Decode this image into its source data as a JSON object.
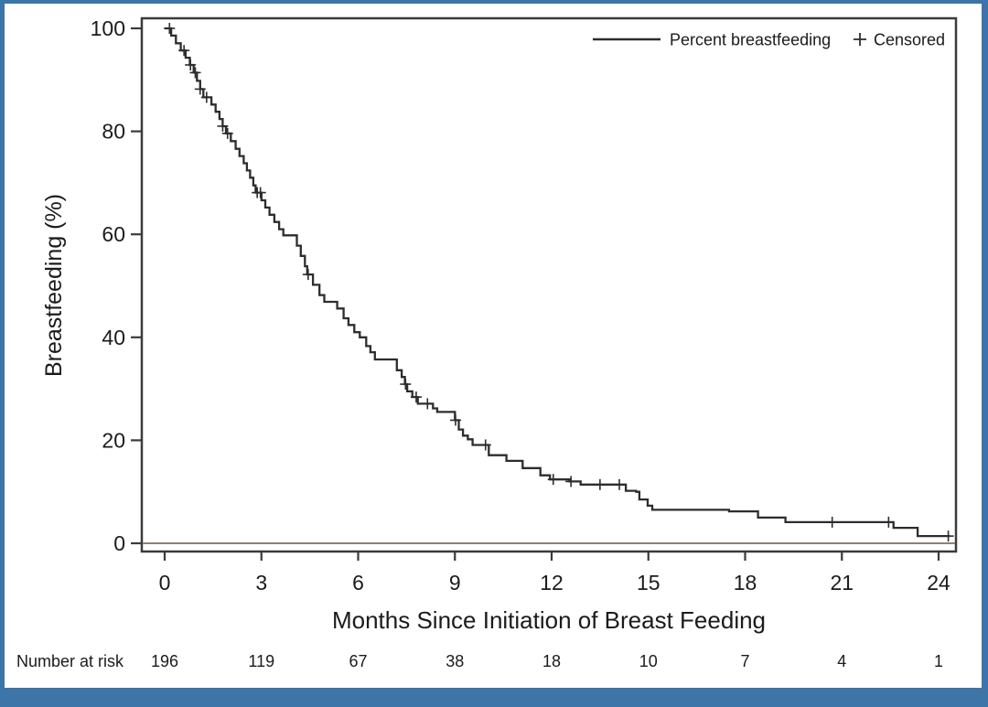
{
  "figure": {
    "colors": {
      "accent_blue": "#3d75a8",
      "curve": "#2d2d2d",
      "frame": "#3b3b3b",
      "text": "#1b1b1b",
      "baseline_line": "#8f8074"
    }
  },
  "chart_data": {
    "type": "line",
    "chart_kind": "kaplan_meier_step",
    "title": "",
    "xlabel": "Months Since Initiation of Breast Feeding",
    "ylabel": "Breastfeeding (%)",
    "xlim": [
      0,
      24.6
    ],
    "ylim": [
      0,
      100
    ],
    "x_ticks": [
      0,
      3,
      6,
      9,
      12,
      15,
      18,
      21,
      24
    ],
    "y_ticks": [
      0,
      20,
      40,
      60,
      80,
      100
    ],
    "grid": false,
    "legend_position": "top-right",
    "legend": [
      {
        "label": "Percent breastfeeding",
        "marker": "line"
      },
      {
        "label": "Censored",
        "marker": "plus"
      }
    ],
    "baseline_reference_y": 0,
    "series": [
      {
        "name": "Percent breastfeeding",
        "step_points": [
          [
            0,
            100
          ],
          [
            0.2,
            98.6
          ],
          [
            0.35,
            97.1
          ],
          [
            0.5,
            95.7
          ],
          [
            0.65,
            94.3
          ],
          [
            0.78,
            92.9
          ],
          [
            0.9,
            91.4
          ],
          [
            1.0,
            89.8
          ],
          [
            1.1,
            88.2
          ],
          [
            1.2,
            86.6
          ],
          [
            1.45,
            85.2
          ],
          [
            1.58,
            83.8
          ],
          [
            1.7,
            82.4
          ],
          [
            1.8,
            81.0
          ],
          [
            1.9,
            79.6
          ],
          [
            2.05,
            78.1
          ],
          [
            2.2,
            76.6
          ],
          [
            2.32,
            75.2
          ],
          [
            2.45,
            73.8
          ],
          [
            2.55,
            72.4
          ],
          [
            2.65,
            71.0
          ],
          [
            2.75,
            69.5
          ],
          [
            2.82,
            68.1
          ],
          [
            3.0,
            66.6
          ],
          [
            3.12,
            65.2
          ],
          [
            3.25,
            63.8
          ],
          [
            3.4,
            62.4
          ],
          [
            3.55,
            61.0
          ],
          [
            3.68,
            59.8
          ],
          [
            4.1,
            57.8
          ],
          [
            4.22,
            55.8
          ],
          [
            4.35,
            53.8
          ],
          [
            4.42,
            52.2
          ],
          [
            4.6,
            50.2
          ],
          [
            4.8,
            48.2
          ],
          [
            4.95,
            46.9
          ],
          [
            5.35,
            45.6
          ],
          [
            5.55,
            43.7
          ],
          [
            5.7,
            42.4
          ],
          [
            5.88,
            41.0
          ],
          [
            6.05,
            40.0
          ],
          [
            6.25,
            38.3
          ],
          [
            6.38,
            37.1
          ],
          [
            6.52,
            35.7
          ],
          [
            7.2,
            33.6
          ],
          [
            7.35,
            32.3
          ],
          [
            7.45,
            30.9
          ],
          [
            7.52,
            29.5
          ],
          [
            7.68,
            28.4
          ],
          [
            7.85,
            27.1
          ],
          [
            8.32,
            26.2
          ],
          [
            8.45,
            25.5
          ],
          [
            9.0,
            23.9
          ],
          [
            9.12,
            22.1
          ],
          [
            9.25,
            20.9
          ],
          [
            9.4,
            20.2
          ],
          [
            9.55,
            19.1
          ],
          [
            10.05,
            17.1
          ],
          [
            10.6,
            16.0
          ],
          [
            11.1,
            14.6
          ],
          [
            11.65,
            13.2
          ],
          [
            11.95,
            12.4
          ],
          [
            12.55,
            12.0
          ],
          [
            12.9,
            11.4
          ],
          [
            14.3,
            10.2
          ],
          [
            14.62,
            10.0
          ],
          [
            14.72,
            8.5
          ],
          [
            14.98,
            7.3
          ],
          [
            15.12,
            6.5
          ],
          [
            17.5,
            6.2
          ],
          [
            18.4,
            5.0
          ],
          [
            19.25,
            4.1
          ],
          [
            22.6,
            3.0
          ],
          [
            23.35,
            1.4
          ]
        ],
        "end_month": 24.35
      }
    ],
    "censored": {
      "marker": "+",
      "months": [
        0.15,
        0.6,
        0.8,
        0.95,
        1.1,
        1.3,
        1.8,
        1.95,
        2.87,
        2.97,
        4.45,
        7.47,
        7.8,
        8.15,
        9.02,
        9.95,
        12.05,
        12.6,
        13.5,
        14.1,
        20.7,
        22.45,
        24.3
      ]
    },
    "number_at_risk": {
      "label": "Number at risk",
      "months": [
        0,
        3,
        6,
        9,
        12,
        15,
        18,
        21,
        24
      ],
      "values": [
        196,
        119,
        67,
        38,
        18,
        10,
        7,
        4,
        1
      ]
    }
  }
}
